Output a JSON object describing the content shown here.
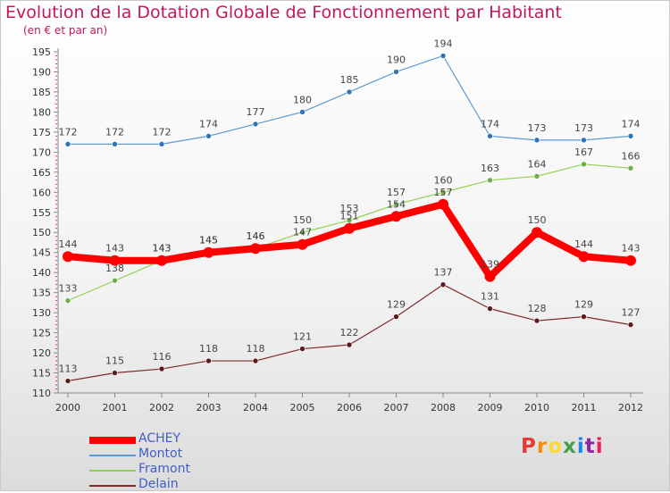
{
  "header": {
    "title": "Evolution de la Dotation Globale de Fonctionnement par Habitant",
    "subtitle": "(en € et par an)"
  },
  "logo": {
    "text": "Proxiti",
    "colors": [
      "#e53935",
      "#fb8c00",
      "#fdd835",
      "#43a047",
      "#1e88e5",
      "#8e24aa",
      "#e91e63"
    ]
  },
  "chart_data": {
    "type": "line",
    "title": "Evolution de la Dotation Globale de Fonctionnement par Habitant",
    "subtitle": "(en € et par an)",
    "x": [
      "2000",
      "2001",
      "2002",
      "2003",
      "2004",
      "2005",
      "2006",
      "2007",
      "2008",
      "2009",
      "2010",
      "2011",
      "2012"
    ],
    "ylim": [
      110,
      195
    ],
    "yticks": [
      110,
      115,
      120,
      125,
      130,
      135,
      140,
      145,
      150,
      155,
      160,
      165,
      170,
      175,
      180,
      185,
      190,
      195
    ],
    "grid": false,
    "legend_position": "bottom-left",
    "series": [
      {
        "name": "Montot",
        "color": "#5b9bd5",
        "point_color": "#2e75b6",
        "width": 1.2,
        "point_radius": 3,
        "values": [
          172,
          172,
          172,
          174,
          177,
          180,
          185,
          190,
          194,
          174,
          173,
          173,
          174
        ]
      },
      {
        "name": "Framont",
        "color": "#92d050",
        "point_color": "#70ad47",
        "width": 1.2,
        "point_radius": 3,
        "values": [
          133,
          138,
          143,
          145,
          146,
          150,
          153,
          157,
          160,
          163,
          164,
          167,
          166
        ]
      },
      {
        "name": "Delain",
        "color": "#7f2a2a",
        "point_color": "#5c1a1a",
        "width": 1.2,
        "point_radius": 3,
        "values": [
          113,
          115,
          116,
          118,
          118,
          121,
          122,
          129,
          137,
          131,
          128,
          129,
          127
        ]
      },
      {
        "name": "ACHEY",
        "color": "#ff0000",
        "point_color": "#ff0000",
        "width": 8,
        "point_radius": 6,
        "values": [
          144,
          143,
          143,
          145,
          146,
          147,
          151,
          154,
          157,
          139,
          150,
          144,
          143
        ]
      }
    ],
    "legend_order": [
      "ACHEY",
      "Montot",
      "Framont",
      "Delain"
    ]
  }
}
